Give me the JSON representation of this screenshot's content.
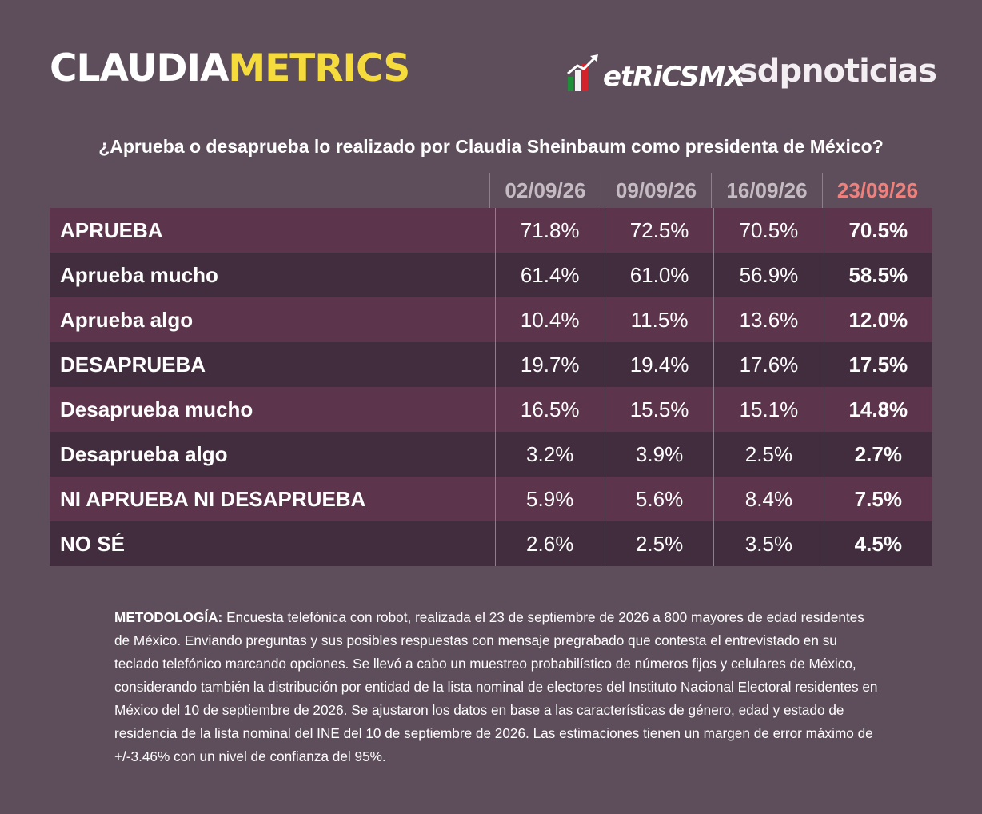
{
  "header": {
    "brand_part1": "CLAUDIA",
    "brand_part2": "METRICS",
    "partner_logo_text": "etRiCSMX",
    "partner2_logo_text": "sdpnoticias"
  },
  "chart_data": {
    "type": "table",
    "title": "¿Aprueba o desaprueba lo realizado por Claudia Sheinbaum como presidenta de México?",
    "columns": [
      "02/09/26",
      "09/09/26",
      "16/09/26",
      "23/09/26"
    ],
    "rows": [
      {
        "label": "APRUEBA",
        "values": [
          "71.8%",
          "72.5%",
          "70.5%",
          "70.5%"
        ]
      },
      {
        "label": "Aprueba mucho",
        "values": [
          "61.4%",
          "61.0%",
          "56.9%",
          "58.5%"
        ]
      },
      {
        "label": "Aprueba algo",
        "values": [
          "10.4%",
          "11.5%",
          "13.6%",
          "12.0%"
        ]
      },
      {
        "label": "DESAPRUEBA",
        "values": [
          "19.7%",
          "19.4%",
          "17.6%",
          "17.5%"
        ]
      },
      {
        "label": "Desaprueba mucho",
        "values": [
          "16.5%",
          "15.5%",
          "15.1%",
          "14.8%"
        ]
      },
      {
        "label": "Desaprueba algo",
        "values": [
          "3.2%",
          "3.9%",
          "2.5%",
          "2.7%"
        ]
      },
      {
        "label": "NI APRUEBA NI DESAPRUEBA",
        "values": [
          "5.9%",
          "5.6%",
          "8.4%",
          "7.5%"
        ]
      },
      {
        "label": "NO SÉ",
        "values": [
          "2.6%",
          "2.5%",
          "3.5%",
          "4.5%"
        ]
      }
    ]
  },
  "methodology": {
    "label": "METODOLOGÍA:",
    "text": "Encuesta telefónica con robot, realizada el 23 de septiembre de 2026 a 800 mayores de edad residentes de México. Enviando preguntas y sus posibles respuestas con mensaje pregrabado que contesta el entrevistado en su teclado telefónico marcando opciones. Se llevó a cabo un muestreo probabilístico de números fijos y celulares de México, considerando también la distribución por entidad de la lista nominal de electores del Instituto Nacional Electoral residentes en México del 10 de septiembre de 2026. Se ajustaron los datos en base a las características de género, edad y estado de residencia de la lista nominal del INE del 10 de septiembre de 2026. Las estimaciones tienen un margen de error máximo de +/-3.46% con un nivel de confianza del 95%."
  },
  "colors": {
    "background": "#5e4e5b",
    "brand_yellow": "#f5dc3c",
    "row_light": "#5c344c",
    "row_dark": "#412d3d",
    "latest_date": "#f0807c"
  }
}
